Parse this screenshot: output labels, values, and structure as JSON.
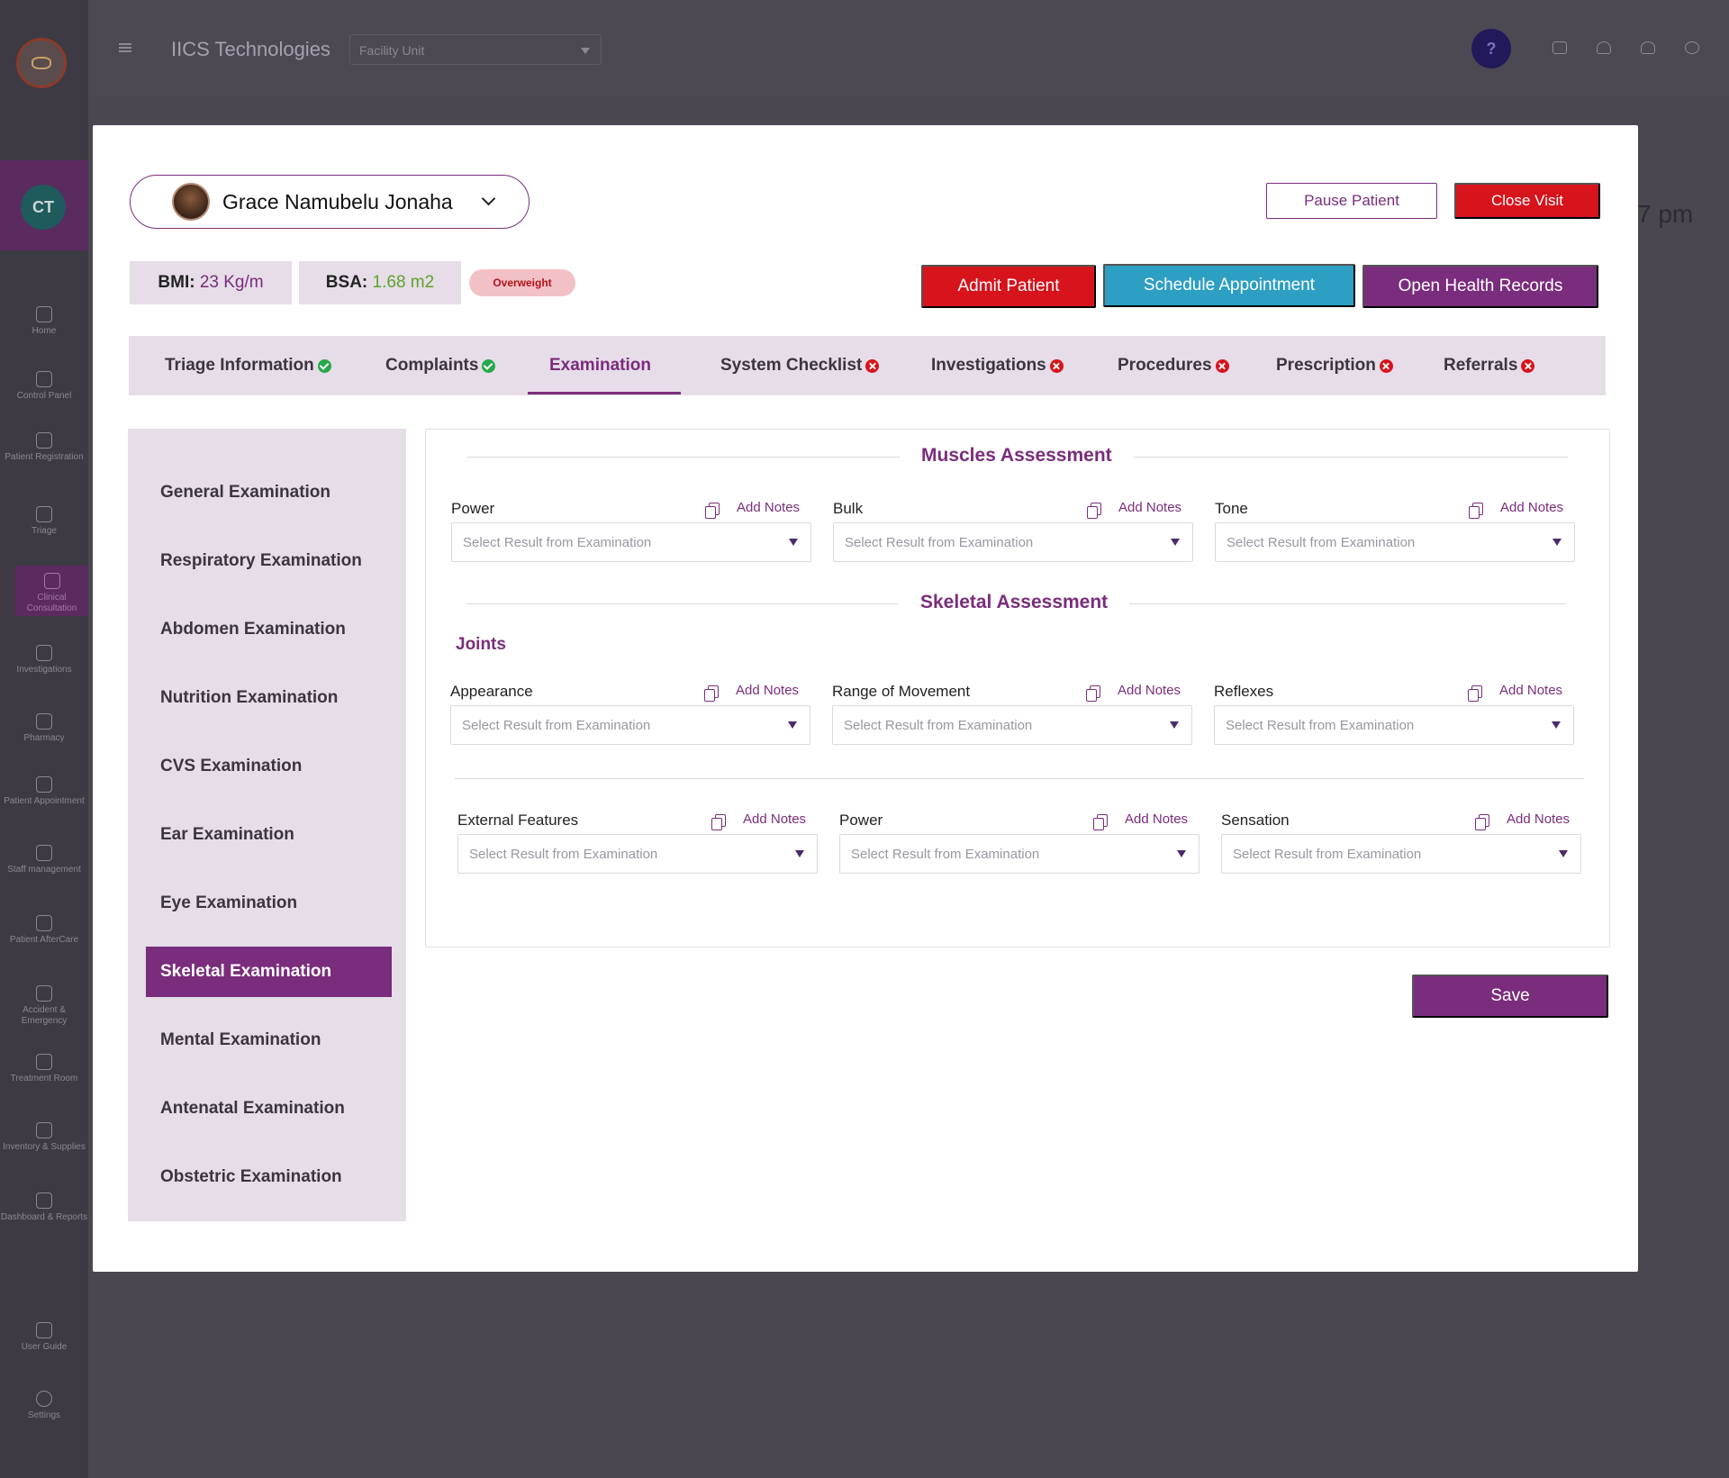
{
  "app": {
    "brand": "IICS Technologies",
    "facility_placeholder": "Facility Unit",
    "help_label": "?",
    "background_time": "7 pm"
  },
  "sidebar": {
    "user_initials": "CT",
    "items": [
      {
        "label": "Home",
        "icon": "home-icon"
      },
      {
        "label": "Control Panel",
        "icon": "grid-icon"
      },
      {
        "label": "Patient Registration",
        "icon": "users-icon"
      },
      {
        "label": "Triage",
        "icon": "clipboard-icon"
      },
      {
        "label": "Clinical Consultation",
        "icon": "consult-icon"
      },
      {
        "label": "Investigations",
        "icon": "microscope-icon"
      },
      {
        "label": "Pharmacy",
        "icon": "pharmacy-icon"
      },
      {
        "label": "Patient Appointment",
        "icon": "calendar-icon"
      },
      {
        "label": "Staff management",
        "icon": "staff-icon"
      },
      {
        "label": "Patient AfterCare",
        "icon": "aftercare-icon"
      },
      {
        "label": "Accident & Emergency",
        "icon": "emergency-icon"
      },
      {
        "label": "Treatment Room",
        "icon": "treatment-icon"
      },
      {
        "label": "Inventory & Supplies",
        "icon": "inventory-icon"
      },
      {
        "label": "Dashboard & Reports",
        "icon": "report-icon"
      },
      {
        "label": "User Guide",
        "icon": "bookmark-icon"
      },
      {
        "label": "Settings",
        "icon": "gear-icon"
      }
    ]
  },
  "patient": {
    "name": "Grace Namubelu Jonaha",
    "bmi_label": "BMI:",
    "bmi_value": "23 Kg/m",
    "bsa_label": "BSA:",
    "bsa_value": "1.68 m2",
    "status_badge": "Overweight"
  },
  "actions": {
    "pause": "Pause Patient",
    "close": "Close Visit",
    "admit": "Admit Patient",
    "schedule": "Schedule Appointment",
    "records": "Open Health Records",
    "save": "Save"
  },
  "tabs": [
    {
      "label": "Triage Information",
      "status": "ok"
    },
    {
      "label": "Complaints",
      "status": "ok"
    },
    {
      "label": "Examination",
      "status": "active"
    },
    {
      "label": "System Checklist",
      "status": "bad"
    },
    {
      "label": "Investigations",
      "status": "bad"
    },
    {
      "label": "Procedures",
      "status": "bad"
    },
    {
      "label": "Prescription",
      "status": "bad"
    },
    {
      "label": "Referrals",
      "status": "bad"
    }
  ],
  "exams": [
    "General Examination",
    "Respiratory Examination",
    "Abdomen Examination",
    "Nutrition Examination",
    "CVS Examination",
    "Ear Examination",
    "Eye Examination",
    "Skeletal Examination",
    "Mental Examination",
    "Antenatal Examination",
    "Obstetric Examination"
  ],
  "form": {
    "muscles_title": "Muscles Assessment",
    "skeletal_title": "Skeletal Assessment",
    "joints_label": "Joints",
    "add_notes": "Add Notes",
    "select_placeholder": "Select Result from Examination",
    "muscle_fields": [
      "Power",
      "Bulk",
      "Tone"
    ],
    "joint_fields": [
      "Appearance",
      "Range of Movement",
      "Reflexes"
    ],
    "other_fields": [
      "External  Features",
      "Power",
      "Sensation"
    ]
  },
  "colors": {
    "primary": "#7a2d7c",
    "danger": "#d7131b",
    "info": "#2d9fc3",
    "success": "#27a84a",
    "panel_bg": "#e6dde8"
  }
}
